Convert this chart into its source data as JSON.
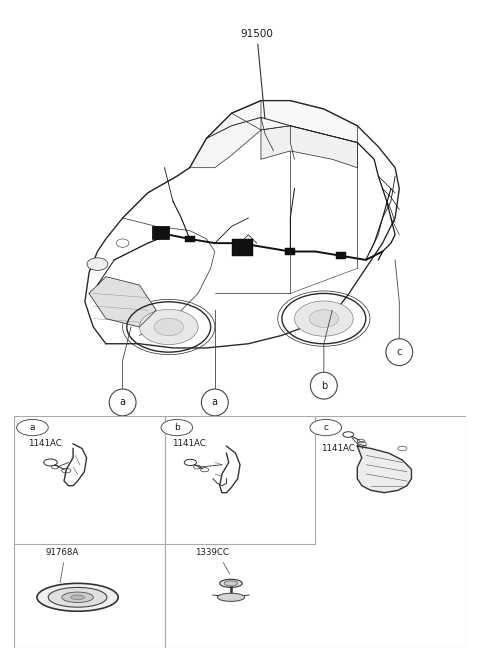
{
  "fig_width": 4.8,
  "fig_height": 6.55,
  "dpi": 100,
  "bg": "#ffffff",
  "line_color": "#2a2a2a",
  "text_color": "#1a1a1a",
  "grid_line_color": "#aaaaaa",
  "part_number": "91500",
  "cells": [
    {
      "id": "a",
      "label": "1141AC",
      "row": 0,
      "col": 0
    },
    {
      "id": "b",
      "label": "1141AC",
      "row": 0,
      "col": 1
    },
    {
      "id": "c",
      "label": "1141AC",
      "row": 0,
      "col": 2
    },
    {
      "id": "91768A",
      "label": "91768A",
      "row": 1,
      "col": 0
    },
    {
      "id": "1339CC",
      "label": "1339CC",
      "row": 1,
      "col": 1
    }
  ]
}
